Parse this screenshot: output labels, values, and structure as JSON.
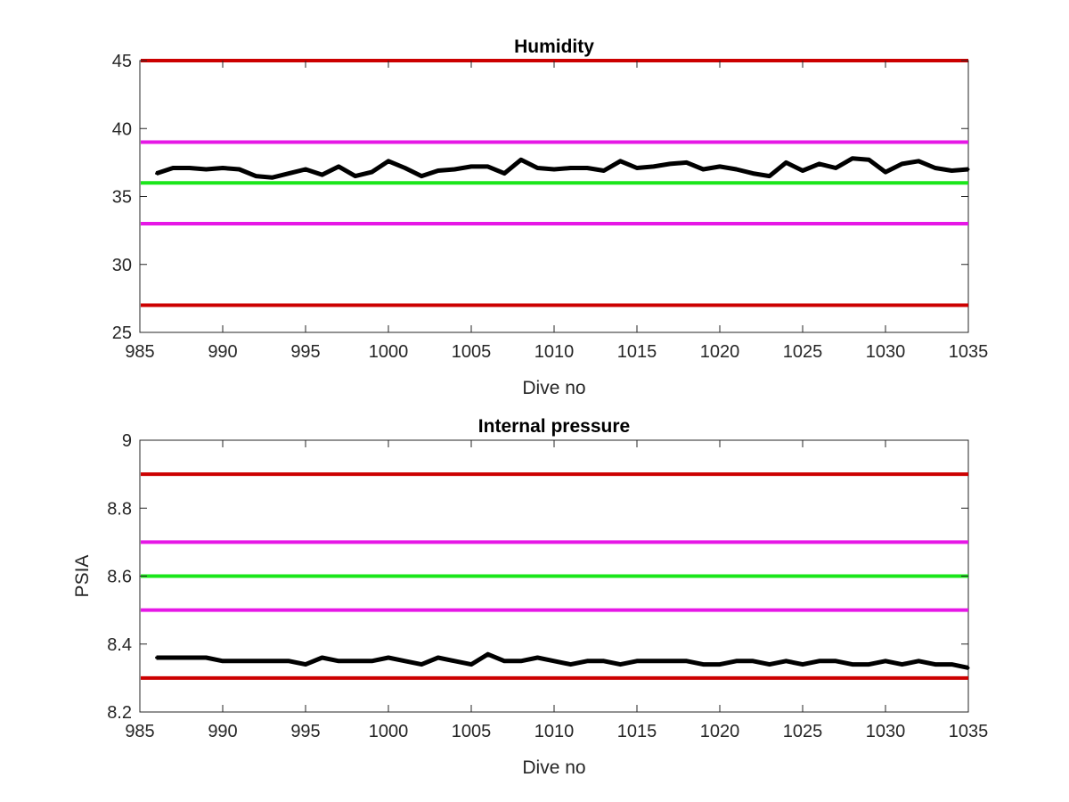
{
  "chart_data": [
    {
      "type": "line",
      "title": "Humidity",
      "xlabel": "Dive no",
      "ylabel": "",
      "xlim": [
        985,
        1035
      ],
      "ylim": [
        25,
        45
      ],
      "xticks": [
        "985",
        "990",
        "995",
        "1000",
        "1005",
        "1010",
        "1015",
        "1020",
        "1025",
        "1030",
        "1035"
      ],
      "yticks": [
        "25",
        "30",
        "35",
        "40",
        "45"
      ],
      "grid": false,
      "thresholds": [
        {
          "value": 45,
          "color": "#cc0000"
        },
        {
          "value": 39,
          "color": "#e617e6"
        },
        {
          "value": 36,
          "color": "#19e619"
        },
        {
          "value": 33,
          "color": "#e617e6"
        },
        {
          "value": 27,
          "color": "#cc0000"
        }
      ],
      "series": [
        {
          "color": "#000000",
          "x": [
            986,
            987,
            988,
            989,
            990,
            991,
            992,
            993,
            994,
            995,
            996,
            997,
            998,
            999,
            1000,
            1001,
            1002,
            1003,
            1004,
            1005,
            1006,
            1007,
            1008,
            1009,
            1010,
            1011,
            1012,
            1013,
            1014,
            1015,
            1016,
            1017,
            1018,
            1019,
            1020,
            1021,
            1022,
            1023,
            1024,
            1025,
            1026,
            1027,
            1028,
            1029,
            1030,
            1031,
            1032,
            1033,
            1034,
            1035
          ],
          "values": [
            36.7,
            37.1,
            37.1,
            37.0,
            37.1,
            37.0,
            36.5,
            36.4,
            36.7,
            37.0,
            36.6,
            37.2,
            36.5,
            36.8,
            37.6,
            37.1,
            36.5,
            36.9,
            37.0,
            37.2,
            37.2,
            36.7,
            37.7,
            37.1,
            37.0,
            37.1,
            37.1,
            36.9,
            37.6,
            37.1,
            37.2,
            37.4,
            37.5,
            37.0,
            37.2,
            37.0,
            36.7,
            36.5,
            37.5,
            36.9,
            37.4,
            37.1,
            37.8,
            37.7,
            36.8,
            37.4,
            37.6,
            37.1,
            36.9,
            37.0
          ]
        }
      ]
    },
    {
      "type": "line",
      "title": "Internal pressure",
      "xlabel": "Dive no",
      "ylabel": "PSIA",
      "xlim": [
        985,
        1035
      ],
      "ylim": [
        8.2,
        9
      ],
      "xticks": [
        "985",
        "990",
        "995",
        "1000",
        "1005",
        "1010",
        "1015",
        "1020",
        "1025",
        "1030",
        "1035"
      ],
      "yticks": [
        "8.2",
        "8.4",
        "8.6",
        "8.8",
        "9"
      ],
      "grid": false,
      "thresholds": [
        {
          "value": 8.9,
          "color": "#cc0000"
        },
        {
          "value": 8.7,
          "color": "#e617e6"
        },
        {
          "value": 8.6,
          "color": "#19e619"
        },
        {
          "value": 8.5,
          "color": "#e617e6"
        },
        {
          "value": 8.3,
          "color": "#cc0000"
        }
      ],
      "series": [
        {
          "color": "#000000",
          "x": [
            986,
            987,
            988,
            989,
            990,
            991,
            992,
            993,
            994,
            995,
            996,
            997,
            998,
            999,
            1000,
            1001,
            1002,
            1003,
            1004,
            1005,
            1006,
            1007,
            1008,
            1009,
            1010,
            1011,
            1012,
            1013,
            1014,
            1015,
            1016,
            1017,
            1018,
            1019,
            1020,
            1021,
            1022,
            1023,
            1024,
            1025,
            1026,
            1027,
            1028,
            1029,
            1030,
            1031,
            1032,
            1033,
            1034,
            1035
          ],
          "values": [
            8.36,
            8.36,
            8.36,
            8.36,
            8.35,
            8.35,
            8.35,
            8.35,
            8.35,
            8.34,
            8.36,
            8.35,
            8.35,
            8.35,
            8.36,
            8.35,
            8.34,
            8.36,
            8.35,
            8.34,
            8.37,
            8.35,
            8.35,
            8.36,
            8.35,
            8.34,
            8.35,
            8.35,
            8.34,
            8.35,
            8.35,
            8.35,
            8.35,
            8.34,
            8.34,
            8.35,
            8.35,
            8.34,
            8.35,
            8.34,
            8.35,
            8.35,
            8.34,
            8.34,
            8.35,
            8.34,
            8.35,
            8.34,
            8.34,
            8.33
          ]
        }
      ]
    }
  ]
}
